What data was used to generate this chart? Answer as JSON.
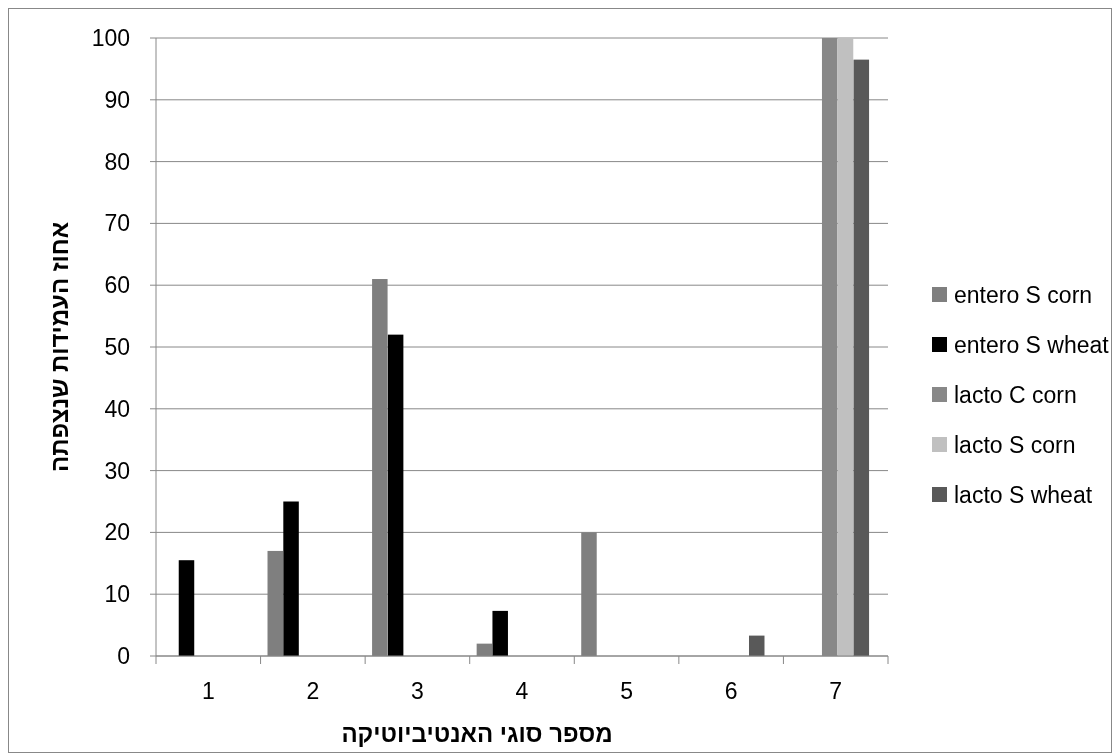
{
  "chart_data": {
    "type": "bar",
    "xlabel": "מספר סוגי האנטיביוטיקה",
    "ylabel": "אחוז העמידות שנצפתה",
    "categories": [
      "1",
      "2",
      "3",
      "4",
      "5",
      "6",
      "7"
    ],
    "series": [
      {
        "name": "entero S corn",
        "color": "#7f7f7f",
        "values": [
          0,
          17,
          61,
          2,
          20,
          0,
          0
        ]
      },
      {
        "name": "entero S wheat",
        "color": "#000000",
        "values": [
          15.5,
          25,
          52,
          7.3,
          0,
          0,
          0
        ]
      },
      {
        "name": "lacto C corn",
        "color": "#888888",
        "values": [
          0,
          0,
          0,
          0,
          0,
          0,
          100
        ]
      },
      {
        "name": "lacto S corn",
        "color": "#c0c0c0",
        "values": [
          0,
          0,
          0,
          0,
          0,
          0,
          100
        ]
      },
      {
        "name": "lacto S wheat",
        "color": "#595959",
        "values": [
          0,
          0,
          0,
          0,
          0,
          3.3,
          96.5
        ]
      }
    ],
    "ylim": [
      0,
      100
    ],
    "yticks": [
      0,
      10,
      20,
      30,
      40,
      50,
      60,
      70,
      80,
      90,
      100
    ],
    "grid": "y",
    "legend": "right"
  }
}
